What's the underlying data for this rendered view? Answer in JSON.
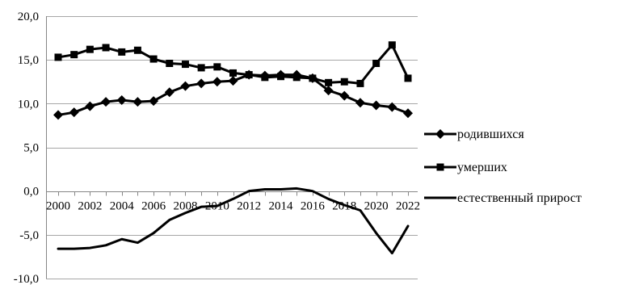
{
  "chart_data": {
    "type": "line",
    "x": [
      2000,
      2001,
      2002,
      2003,
      2004,
      2005,
      2006,
      2007,
      2008,
      2009,
      2010,
      2011,
      2012,
      2013,
      2014,
      2015,
      2016,
      2017,
      2018,
      2019,
      2020,
      2021,
      2022
    ],
    "x_tick_labels": [
      "2000",
      "2002",
      "2004",
      "2006",
      "2008",
      "2010",
      "2012",
      "2014",
      "2016",
      "2018",
      "2020",
      "2022"
    ],
    "y_tick_labels": [
      "20,0",
      "15,0",
      "10,0",
      "5,0",
      "0,0",
      "-5,0",
      "-10,0"
    ],
    "ylim": [
      -10,
      20
    ],
    "grid": true,
    "legend_position": "right",
    "series": [
      {
        "name": "родившихся",
        "marker": "diamond",
        "color": "#000000",
        "values": [
          8.7,
          9.0,
          9.7,
          10.2,
          10.4,
          10.2,
          10.3,
          11.3,
          12.0,
          12.3,
          12.5,
          12.6,
          13.3,
          13.2,
          13.3,
          13.3,
          12.9,
          11.5,
          10.9,
          10.1,
          9.8,
          9.6,
          8.9
        ]
      },
      {
        "name": "умерших",
        "marker": "square",
        "color": "#000000",
        "values": [
          15.3,
          15.6,
          16.2,
          16.4,
          15.9,
          16.1,
          15.1,
          14.6,
          14.5,
          14.1,
          14.2,
          13.5,
          13.3,
          13.0,
          13.1,
          13.0,
          12.9,
          12.4,
          12.5,
          12.3,
          14.6,
          16.7,
          12.9
        ]
      },
      {
        "name": "естественный прирост",
        "marker": "none",
        "color": "#000000",
        "values": [
          -6.6,
          -6.6,
          -6.5,
          -6.2,
          -5.5,
          -5.9,
          -4.8,
          -3.3,
          -2.5,
          -1.8,
          -1.7,
          -0.9,
          0.0,
          0.2,
          0.2,
          0.3,
          0.0,
          -0.9,
          -1.6,
          -2.2,
          -4.8,
          -7.1,
          -4.0
        ]
      }
    ]
  }
}
